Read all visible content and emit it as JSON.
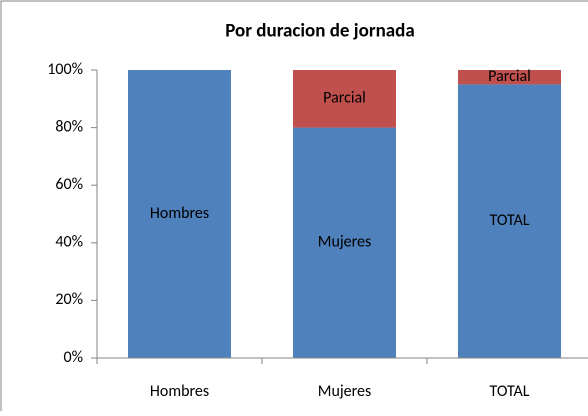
{
  "chart_data": {
    "type": "stacked_bar",
    "title": "Por duracion de jornada",
    "categories": [
      "Hombres",
      "Mujeres",
      "TOTAL"
    ],
    "series": [
      {
        "color": "#4f81bd",
        "values": [
          100,
          80,
          95
        ]
      },
      {
        "name": "Parcial",
        "color": "#c0504d",
        "values": [
          0,
          20,
          5
        ]
      }
    ],
    "ylim": [
      0,
      100
    ],
    "yticks": [
      {
        "value": 0,
        "label": "0%"
      },
      {
        "value": 20,
        "label": "20%"
      },
      {
        "value": 40,
        "label": "40%"
      },
      {
        "value": 60,
        "label": "60%"
      },
      {
        "value": 80,
        "label": "80%"
      },
      {
        "value": 100,
        "label": "100%"
      }
    ],
    "grid": false
  }
}
